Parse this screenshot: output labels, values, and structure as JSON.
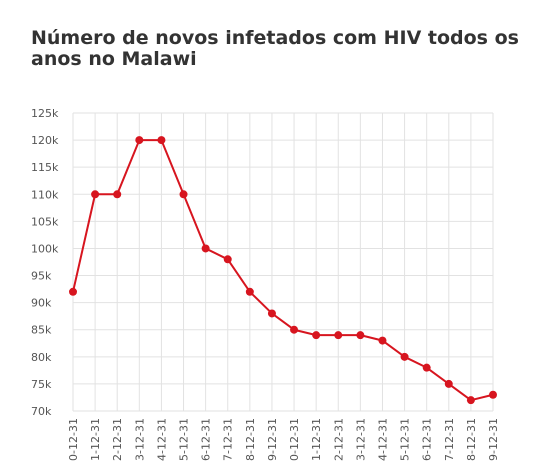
{
  "chart_data": {
    "type": "line",
    "title": "Número de novos infetados com HIV todos os anos no Malawi",
    "xlabel": "",
    "ylabel": "",
    "ylim": [
      70000,
      125000
    ],
    "yticks": [
      70000,
      75000,
      80000,
      85000,
      90000,
      95000,
      100000,
      105000,
      110000,
      115000,
      120000,
      125000
    ],
    "ytick_labels": [
      "70k",
      "75k",
      "80k",
      "85k",
      "90k",
      "95k",
      "100k",
      "105k",
      "110k",
      "115k",
      "120k",
      "125k"
    ],
    "x": [
      "0-12-31",
      "1-12-31",
      "2-12-31",
      "3-12-31",
      "4-12-31",
      "5-12-31",
      "6-12-31",
      "7-12-31",
      "8-12-31",
      "9-12-31",
      "0-12-31",
      "1-12-31",
      "2-12-31",
      "3-12-31",
      "4-12-31",
      "5-12-31",
      "6-12-31",
      "7-12-31",
      "8-12-31",
      "9-12-31"
    ],
    "series": [
      {
        "values": [
          92000,
          110000,
          110000,
          120000,
          120000,
          110000,
          100000,
          98000,
          92000,
          88000,
          85000,
          84000,
          84000,
          84000,
          83000,
          80000,
          78000,
          75000,
          72000,
          73000
        ]
      }
    ],
    "grid": true,
    "legend": "none",
    "colors": {
      "line": "#d7151f",
      "marker": "#d7151f",
      "grid": "#e2e2e2",
      "title": "#333333",
      "tick_text": "#555555"
    }
  }
}
